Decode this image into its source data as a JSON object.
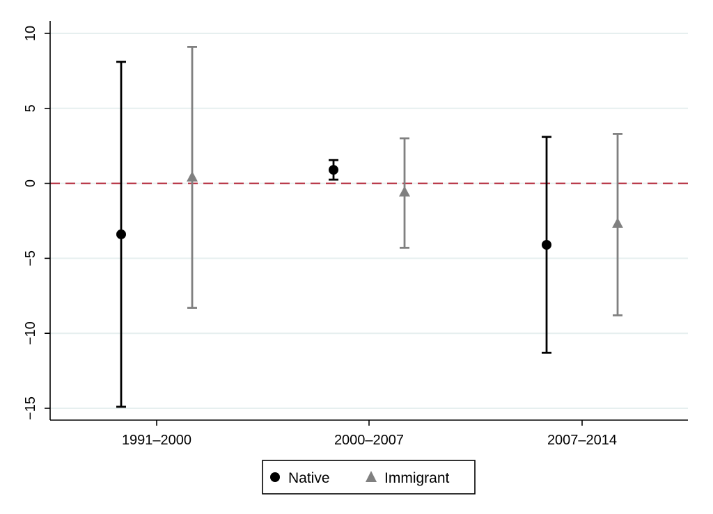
{
  "chart_data": {
    "type": "scatter",
    "subtype": "point-estimates-with-confidence-intervals",
    "title": "",
    "xlabel": "",
    "ylabel": "",
    "categories": [
      "1991–2000",
      "2000–2007",
      "2007–2014"
    ],
    "ylim": [
      -15,
      10
    ],
    "yticks": [
      10,
      5,
      0,
      -5,
      -10,
      -15
    ],
    "ytick_labels": [
      "10",
      "5",
      "0",
      "−5",
      "−10",
      "−15"
    ],
    "grid": true,
    "reference_line": {
      "y": 0,
      "style": "dashed",
      "color": "#b22234"
    },
    "legend": {
      "placement": "bottom-center",
      "boxed": true
    },
    "series": [
      {
        "name": "Native",
        "marker": "circle",
        "color": "#000000",
        "values": [
          -3.4,
          0.9,
          -4.1
        ],
        "lower": [
          -14.9,
          0.25,
          -11.3
        ],
        "upper": [
          8.1,
          1.55,
          3.1
        ]
      },
      {
        "name": "Immigrant",
        "marker": "triangle",
        "color": "#808080",
        "values": [
          0.4,
          -0.6,
          -2.7
        ],
        "lower": [
          -8.3,
          -4.3,
          -8.8
        ],
        "upper": [
          9.1,
          3.0,
          3.3
        ]
      }
    ]
  }
}
